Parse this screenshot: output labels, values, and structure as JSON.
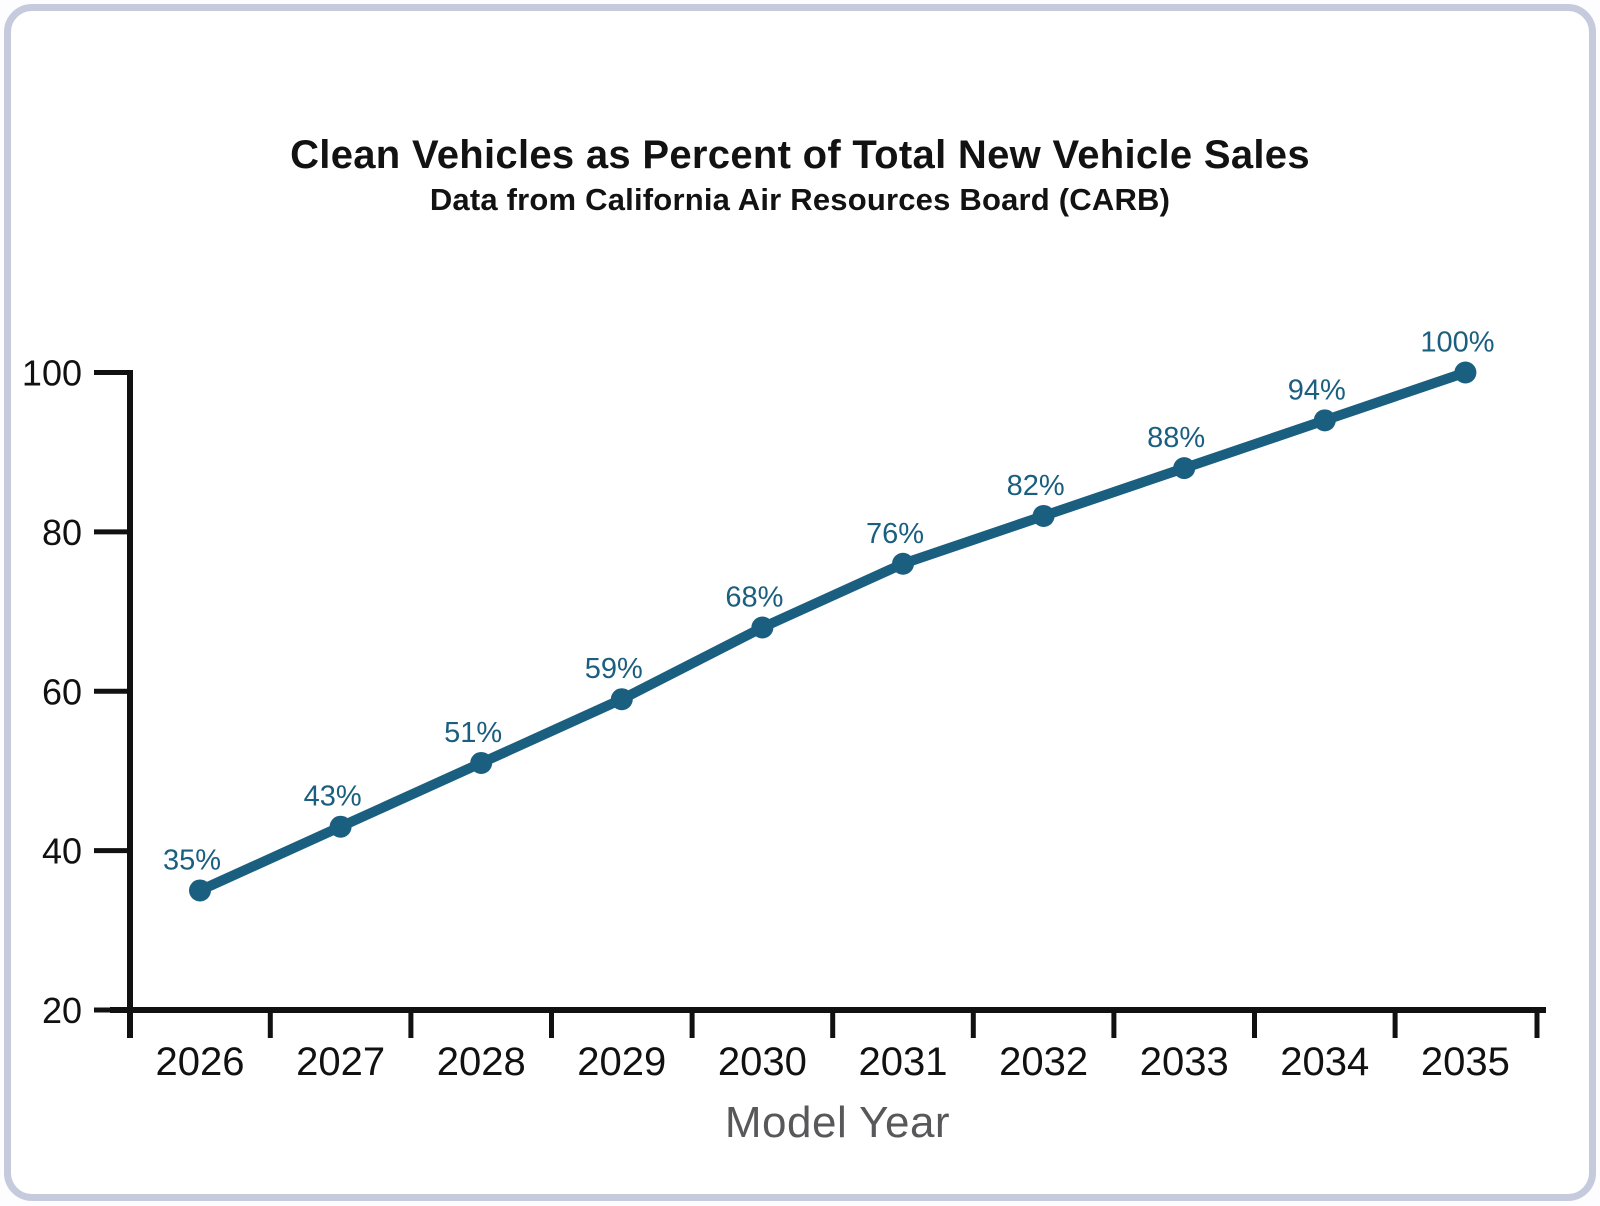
{
  "page": {
    "background_color": "#fdfdff",
    "card_border_color": "#c5cbdc",
    "card_background": "#ffffff"
  },
  "chart_data": {
    "type": "line",
    "title": "Clean Vehicles as Percent of Total New Vehicle Sales",
    "subtitle": "Data from California Air Resources Board (CARB)",
    "xlabel": "Model Year",
    "ylabel": "",
    "categories": [
      "2026",
      "2027",
      "2028",
      "2029",
      "2030",
      "2031",
      "2032",
      "2033",
      "2034",
      "2035"
    ],
    "values": [
      35,
      43,
      51,
      59,
      68,
      76,
      82,
      88,
      94,
      100
    ],
    "point_labels": [
      "35%",
      "43%",
      "51%",
      "59%",
      "68%",
      "76%",
      "82%",
      "88%",
      "94%",
      "100%"
    ],
    "y_ticks": [
      20,
      40,
      60,
      80,
      100
    ],
    "ylim": [
      20,
      100
    ],
    "grid": false,
    "legend": "none",
    "line_color": "#1b5f80",
    "point_color": "#1b5f80",
    "point_label_color": "#1b5f80",
    "axis_color": "#111111",
    "tick_label_color": "#111111",
    "xlabel_color": "#58585b"
  }
}
